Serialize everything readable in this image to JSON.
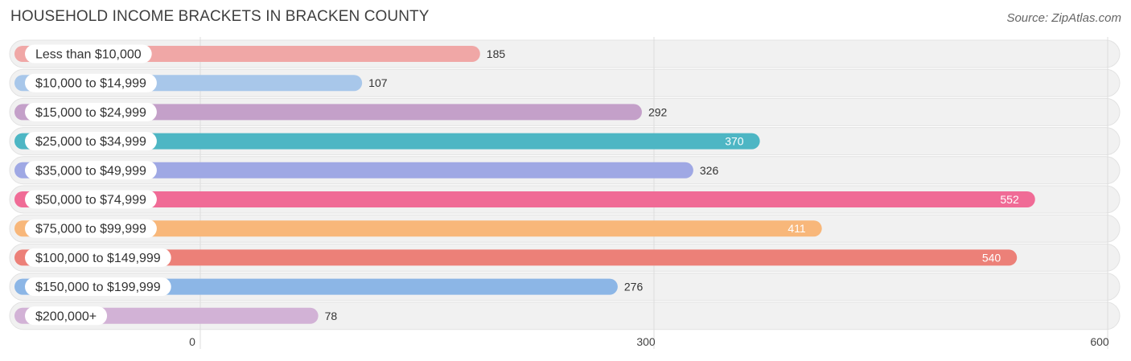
{
  "chart_data": {
    "type": "bar",
    "orientation": "horizontal",
    "title": "HOUSEHOLD INCOME BRACKETS IN BRACKEN COUNTY",
    "source": "Source: ZipAtlas.com",
    "categories": [
      "Less than $10,000",
      "$10,000 to $14,999",
      "$15,000 to $24,999",
      "$25,000 to $34,999",
      "$35,000 to $49,999",
      "$50,000 to $74,999",
      "$75,000 to $99,999",
      "$100,000 to $149,999",
      "$150,000 to $199,999",
      "$200,000+"
    ],
    "values": [
      185,
      107,
      292,
      370,
      326,
      552,
      411,
      540,
      276,
      78
    ],
    "value_labels": [
      "185",
      "107",
      "292",
      "370",
      "326",
      "552",
      "411",
      "540",
      "276",
      "78"
    ],
    "colors": [
      "#f0a7a6",
      "#a8c7ea",
      "#c4a0c9",
      "#4db6c4",
      "#9fa8e4",
      "#f06b96",
      "#f8b77a",
      "#ec8078",
      "#8cb6e6",
      "#d2b2d6"
    ],
    "xlim": [
      0,
      600
    ],
    "ticks": [
      0,
      300,
      600
    ],
    "tick_labels": [
      "0",
      "300",
      "600"
    ],
    "grid": true
  }
}
